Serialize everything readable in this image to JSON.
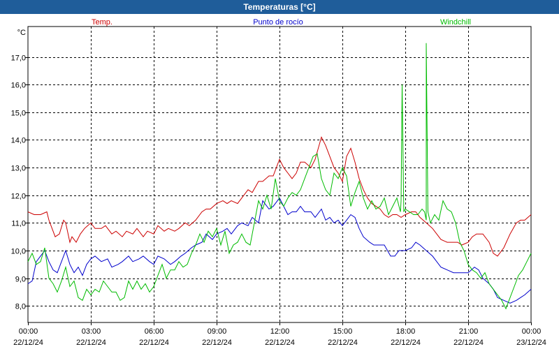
{
  "window": {
    "title": "Temperaturas [°C]"
  },
  "chart_data": {
    "type": "line",
    "title": "Temperaturas [°C]",
    "unit_label": "°C",
    "ylim": [
      7.4,
      18.1
    ],
    "y_ticks": [
      "8,0",
      "9,0",
      "10,0",
      "11,0",
      "12,0",
      "13,0",
      "14,0",
      "15,0",
      "16,0",
      "17,0"
    ],
    "y_tick_values": [
      8,
      9,
      10,
      11,
      12,
      13,
      14,
      15,
      16,
      17
    ],
    "xlim": [
      0,
      24
    ],
    "x_ticks": [
      {
        "time": "00:00",
        "date": "22/12/24",
        "hour": 0
      },
      {
        "time": "03:00",
        "date": "22/12/24",
        "hour": 3
      },
      {
        "time": "06:00",
        "date": "22/12/24",
        "hour": 6
      },
      {
        "time": "09:00",
        "date": "22/12/24",
        "hour": 9
      },
      {
        "time": "12:00",
        "date": "22/12/24",
        "hour": 12
      },
      {
        "time": "15:00",
        "date": "22/12/24",
        "hour": 15
      },
      {
        "time": "18:00",
        "date": "22/12/24",
        "hour": 18
      },
      {
        "time": "21:00",
        "date": "22/12/24",
        "hour": 21
      },
      {
        "time": "00:00",
        "date": "23/12/24",
        "hour": 24
      }
    ],
    "grid": true,
    "legend_position": "top",
    "series": [
      {
        "name": "Temp.",
        "color": "#cc0000",
        "x": [
          0,
          0.3,
          0.6,
          0.9,
          1.0,
          1.1,
          1.3,
          1.5,
          1.7,
          1.8,
          2.0,
          2.1,
          2.3,
          2.5,
          2.7,
          3.0,
          3.2,
          3.5,
          3.7,
          4.0,
          4.2,
          4.5,
          4.7,
          5.0,
          5.2,
          5.5,
          5.7,
          6.0,
          6.2,
          6.5,
          6.7,
          7.0,
          7.2,
          7.5,
          7.7,
          8.0,
          8.3,
          8.5,
          8.7,
          9.0,
          9.3,
          9.5,
          9.7,
          10.0,
          10.3,
          10.5,
          10.7,
          11.0,
          11.2,
          11.5,
          11.7,
          12.0,
          12.2,
          12.4,
          12.6,
          12.8,
          13.0,
          13.2,
          13.5,
          13.7,
          14.0,
          14.2,
          14.4,
          14.6,
          14.8,
          15.0,
          15.2,
          15.4,
          15.6,
          15.8,
          16.0,
          16.2,
          16.4,
          16.6,
          16.8,
          17.0,
          17.2,
          17.4,
          17.6,
          17.8,
          18.0,
          18.3,
          18.5,
          18.7,
          19.0,
          19.3,
          19.5,
          19.7,
          20.0,
          20.3,
          20.5,
          20.7,
          21.0,
          21.2,
          21.4,
          21.7,
          22.0,
          22.2,
          22.4,
          22.7,
          23.0,
          23.3,
          23.5,
          23.7,
          24.0
        ],
        "values": [
          11.4,
          11.3,
          11.3,
          11.4,
          11.1,
          10.9,
          10.5,
          10.6,
          11.1,
          11.0,
          10.3,
          10.5,
          10.3,
          10.6,
          10.8,
          11.0,
          10.8,
          10.8,
          10.9,
          10.6,
          10.7,
          10.5,
          10.7,
          10.6,
          10.8,
          10.5,
          10.7,
          10.6,
          10.9,
          10.7,
          10.8,
          10.7,
          10.8,
          11.0,
          10.9,
          11.1,
          11.4,
          11.5,
          11.5,
          11.7,
          11.8,
          11.7,
          11.8,
          11.7,
          12.0,
          12.2,
          12.1,
          12.5,
          12.5,
          12.7,
          12.7,
          13.3,
          13.0,
          12.8,
          12.6,
          12.8,
          13.2,
          13.2,
          13.0,
          13.3,
          14.1,
          13.8,
          13.4,
          13.0,
          12.8,
          12.5,
          13.4,
          13.7,
          13.2,
          12.6,
          12.2,
          11.9,
          11.7,
          11.6,
          11.5,
          11.3,
          11.2,
          11.3,
          11.3,
          11.2,
          11.3,
          11.4,
          11.4,
          11.2,
          11.0,
          10.8,
          10.6,
          10.4,
          10.3,
          10.3,
          10.3,
          10.2,
          10.3,
          10.5,
          10.6,
          10.6,
          10.3,
          9.9,
          9.8,
          10.1,
          10.6,
          11.0,
          11.1,
          11.1,
          11.3
        ]
      },
      {
        "name": "Punto de rocío",
        "color": "#0000cc",
        "x": [
          0,
          0.2,
          0.4,
          0.6,
          0.8,
          1.0,
          1.2,
          1.4,
          1.6,
          1.8,
          2.0,
          2.2,
          2.4,
          2.6,
          2.8,
          3.0,
          3.2,
          3.5,
          3.8,
          4.0,
          4.3,
          4.5,
          4.8,
          5.0,
          5.3,
          5.5,
          5.8,
          6.0,
          6.2,
          6.5,
          6.8,
          7.0,
          7.3,
          7.5,
          7.8,
          8.0,
          8.3,
          8.5,
          8.8,
          9.0,
          9.3,
          9.5,
          9.7,
          10.0,
          10.2,
          10.5,
          10.7,
          11.0,
          11.2,
          11.5,
          11.7,
          12.0,
          12.2,
          12.4,
          12.6,
          12.8,
          13.0,
          13.2,
          13.5,
          13.7,
          14.0,
          14.2,
          14.4,
          14.6,
          14.8,
          15.0,
          15.2,
          15.4,
          15.6,
          15.8,
          16.0,
          16.3,
          16.5,
          16.7,
          17.0,
          17.3,
          17.5,
          17.7,
          18.0,
          18.3,
          18.5,
          18.7,
          19.0,
          19.3,
          19.5,
          19.7,
          20.0,
          20.3,
          20.5,
          20.7,
          21.0,
          21.3,
          21.5,
          21.7,
          22.0,
          22.2,
          22.4,
          22.7,
          23.0,
          23.3,
          23.5,
          23.7,
          24.0
        ],
        "values": [
          8.8,
          8.9,
          9.6,
          9.8,
          10.0,
          9.6,
          9.3,
          9.2,
          9.6,
          10.0,
          9.5,
          9.2,
          9.4,
          9.1,
          9.5,
          9.7,
          9.8,
          9.6,
          9.7,
          9.4,
          9.5,
          9.6,
          9.8,
          9.6,
          9.7,
          9.8,
          9.6,
          9.5,
          9.8,
          9.7,
          9.5,
          9.6,
          9.8,
          9.9,
          10.1,
          10.2,
          10.3,
          10.6,
          10.4,
          10.6,
          10.7,
          10.8,
          10.6,
          10.9,
          11.0,
          10.9,
          11.2,
          11.0,
          11.8,
          11.5,
          11.6,
          11.9,
          11.6,
          11.3,
          11.4,
          11.4,
          11.6,
          11.4,
          11.4,
          11.2,
          11.5,
          11.1,
          11.2,
          11.0,
          11.1,
          10.9,
          11.1,
          11.3,
          11.2,
          10.8,
          10.5,
          10.3,
          10.2,
          10.2,
          10.2,
          9.8,
          9.8,
          10.0,
          10.0,
          10.1,
          10.3,
          10.2,
          10.0,
          9.8,
          9.6,
          9.4,
          9.3,
          9.2,
          9.2,
          9.2,
          9.2,
          9.4,
          9.3,
          9.0,
          8.8,
          8.6,
          8.3,
          8.2,
          8.1,
          8.2,
          8.3,
          8.4,
          8.6
        ]
      },
      {
        "name": "Windchill",
        "color": "#00bb00",
        "x": [
          0,
          0.2,
          0.4,
          0.6,
          0.8,
          1.0,
          1.2,
          1.4,
          1.6,
          1.8,
          2.0,
          2.2,
          2.4,
          2.6,
          2.8,
          3.0,
          3.2,
          3.4,
          3.6,
          3.8,
          4.0,
          4.2,
          4.4,
          4.6,
          4.8,
          5.0,
          5.2,
          5.4,
          5.6,
          5.8,
          6.0,
          6.2,
          6.4,
          6.6,
          6.8,
          7.0,
          7.2,
          7.4,
          7.6,
          7.8,
          8.0,
          8.2,
          8.4,
          8.6,
          8.8,
          9.0,
          9.2,
          9.4,
          9.6,
          9.8,
          10.0,
          10.2,
          10.4,
          10.6,
          10.8,
          11.0,
          11.2,
          11.4,
          11.6,
          11.8,
          12.0,
          12.2,
          12.4,
          12.6,
          12.8,
          13.0,
          13.2,
          13.4,
          13.6,
          13.8,
          14.0,
          14.2,
          14.4,
          14.6,
          14.8,
          15.0,
          15.2,
          15.4,
          15.6,
          15.8,
          16.0,
          16.2,
          16.4,
          16.6,
          16.8,
          17.0,
          17.2,
          17.4,
          17.6,
          17.8,
          18.0,
          18.2,
          18.4,
          18.6,
          18.8,
          19.0,
          19.2,
          19.4,
          19.6,
          19.8,
          20.0,
          20.2,
          20.4,
          20.6,
          20.8,
          21.0,
          21.2,
          21.4,
          21.6,
          21.8,
          22.0,
          22.2,
          22.4,
          22.6,
          22.8,
          23.0,
          23.2,
          23.4,
          23.6,
          23.8,
          24.0
        ],
        "values": [
          9.6,
          9.9,
          9.5,
          9.6,
          10.1,
          9.0,
          8.8,
          8.5,
          8.9,
          9.4,
          8.7,
          8.9,
          8.3,
          8.2,
          8.6,
          8.4,
          8.6,
          8.5,
          8.9,
          8.7,
          8.5,
          8.5,
          8.2,
          8.3,
          8.9,
          8.6,
          8.9,
          8.6,
          8.8,
          8.5,
          8.7,
          9.1,
          9.5,
          9.0,
          9.3,
          9.3,
          9.6,
          9.4,
          9.5,
          9.9,
          10.2,
          10.6,
          10.3,
          10.7,
          10.5,
          10.8,
          10.2,
          10.7,
          9.9,
          10.2,
          10.3,
          10.6,
          10.3,
          10.2,
          11.0,
          11.8,
          11.5,
          12.0,
          11.5,
          12.6,
          11.8,
          11.6,
          11.9,
          12.1,
          12.0,
          12.2,
          12.6,
          13.0,
          13.4,
          13.5,
          12.6,
          12.2,
          12.0,
          12.8,
          12.6,
          13.0,
          12.7,
          11.6,
          12.1,
          12.5,
          11.9,
          11.5,
          11.8,
          11.5,
          11.6,
          11.9,
          11.3,
          11.6,
          11.9,
          11.8,
          11.5,
          11.4,
          11.3,
          11.3,
          11.5,
          11.1,
          11.0,
          11.3,
          11.1,
          11.8,
          11.5,
          11.4,
          11.0,
          10.3,
          10.0,
          9.5,
          9.3,
          9.2,
          9.0,
          9.2,
          8.8,
          8.6,
          8.4,
          8.2,
          7.9,
          8.3,
          8.7,
          9.1,
          9.3,
          9.6,
          9.9
        ],
        "spikes": [
          {
            "x": 17.85,
            "value": 16.0
          },
          {
            "x": 19.0,
            "value": 17.5
          }
        ]
      }
    ]
  }
}
